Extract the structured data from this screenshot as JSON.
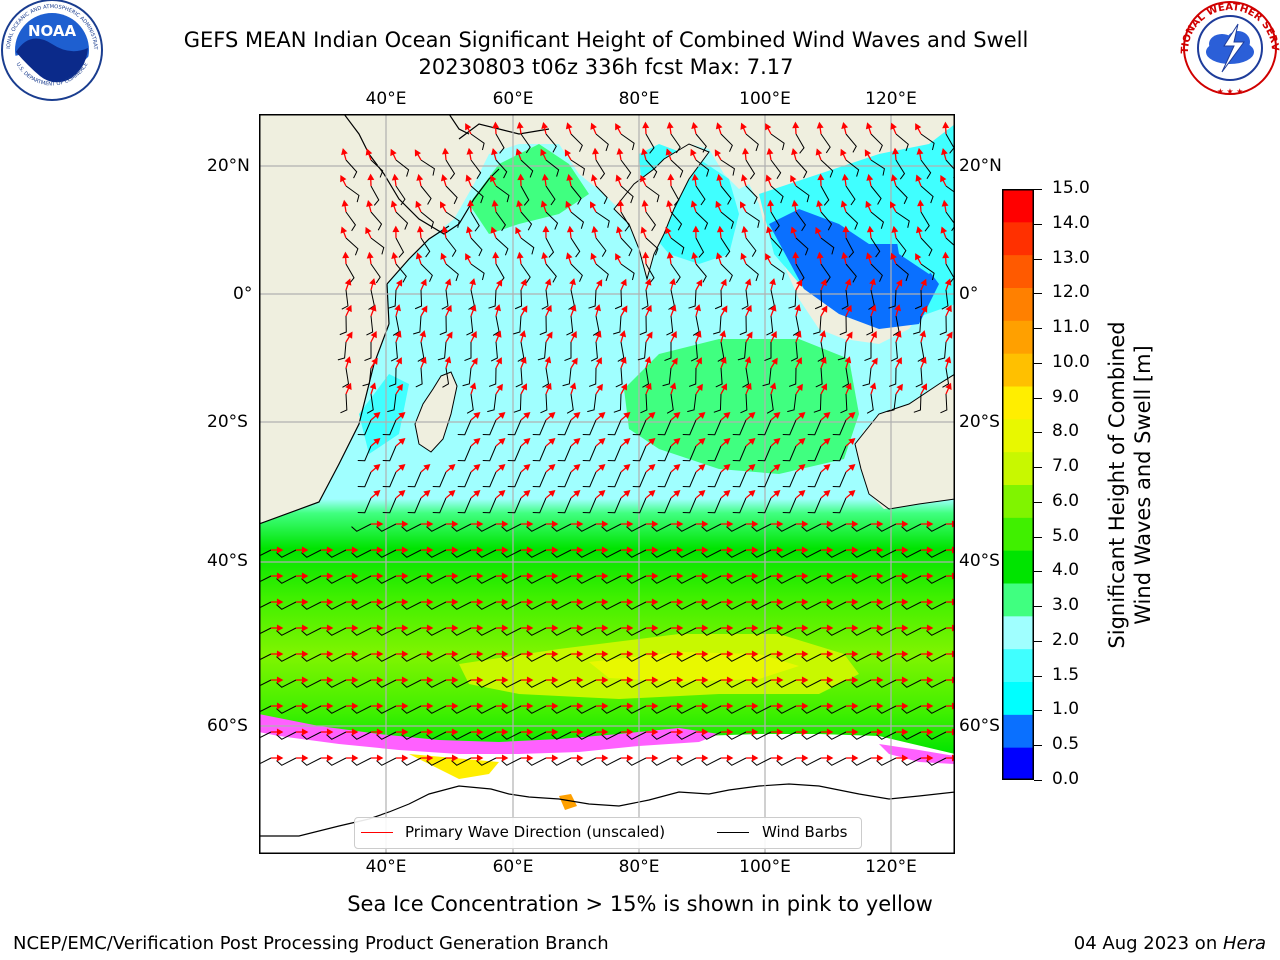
{
  "header": {
    "title_line1": "GEFS MEAN Indian Ocean Significant Height of Combined Wind Waves and Swell",
    "title_line2": "20230803 t06z 336h fcst   Max: 7.17"
  },
  "logos": {
    "left": {
      "icon": "noaa-logo",
      "text": "NOAA",
      "ring_top": "NATIONAL OCEANIC AND ATMOSPHERIC ADMINISTRATION",
      "ring_bottom": "U.S. DEPARTMENT OF COMMERCE"
    },
    "right": {
      "icon": "nws-logo",
      "ring_text": "NATIONAL WEATHER SERVICE"
    }
  },
  "map": {
    "lon_labels": [
      "40°E",
      "60°E",
      "80°E",
      "100°E",
      "120°E"
    ],
    "lat_labels": [
      "20°N",
      "0°",
      "20°S",
      "40°S",
      "60°S"
    ],
    "colors": {
      "land": "#efefdf",
      "ice": "#ffffff",
      "grid": "#b0b0b0",
      "wave_dir": "#ff0000",
      "barb": "#000000"
    }
  },
  "legend": {
    "primary_wave": "Primary Wave Direction (unscaled)",
    "wind_barbs": "Wind Barbs"
  },
  "colorbar": {
    "title_line1": "Significant Height of Combined",
    "title_line2": "Wind Waves and Swell [m]",
    "ticks": [
      "15.0",
      "14.0",
      "13.0",
      "12.0",
      "11.0",
      "10.0",
      "9.0",
      "8.0",
      "7.0",
      "6.0",
      "5.0",
      "4.0",
      "3.0",
      "2.0",
      "1.5",
      "1.0",
      "0.5",
      "0.0"
    ],
    "colors": [
      "#0000ff",
      "#0a70ff",
      "#00ffff",
      "#40ffff",
      "#a0ffff",
      "#40ff80",
      "#00e400",
      "#40f000",
      "#80f400",
      "#c8f800",
      "#e8f800",
      "#ffee00",
      "#ffc000",
      "#ffa000",
      "#ff8000",
      "#ff5a00",
      "#ff3000",
      "#ff0000"
    ]
  },
  "footer": {
    "note": "Sea Ice Concentration > 15% is shown in pink to yellow",
    "left": "NCEP/EMC/Verification Post Processing Product Generation Branch",
    "right_date": "04 Aug 2023 on ",
    "right_machine": "Hera"
  }
}
